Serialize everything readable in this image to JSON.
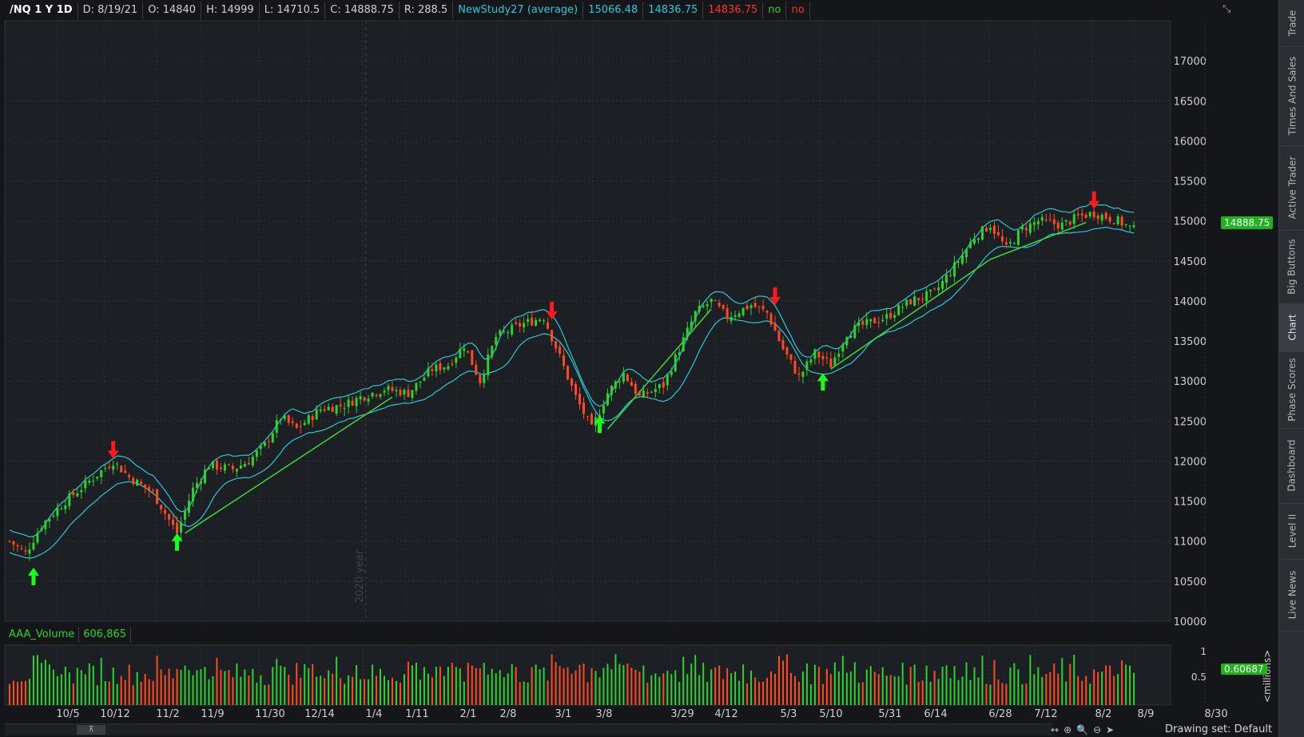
{
  "header": {
    "symbol": "/NQ 1 Y 1D",
    "date": "D: 8/19/21",
    "open": "O: 14840",
    "high": "H: 14999",
    "low": "L: 14710.5",
    "close": "C: 14888.75",
    "range": "R: 288.5",
    "study_name": "NewStudy27 (average)",
    "study_v1": "15066.48",
    "study_v2": "14836.75",
    "study_v3": "14836.75",
    "flag1": "no",
    "flag2": "no"
  },
  "price_tag": "14888.75",
  "volume_panel": {
    "label": "AAA_Volume",
    "value": "606,865",
    "tag": "0.60687",
    "unit": "<millions>",
    "ticks": [
      "1",
      "0.5"
    ]
  },
  "watermark": "2020 year",
  "drawing_set": "Drawing set: Default",
  "sidebar": {
    "tabs": [
      "Trade",
      "Times And Sales",
      "Active Trader",
      "Big Buttons",
      "Chart",
      "Phase Scores",
      "Dashboard",
      "Level II",
      "Live News"
    ],
    "active": "Chart"
  },
  "tools": [
    "↔",
    "⊕",
    "🔍",
    "⊖",
    "➤"
  ],
  "colors": {
    "bg": "#141619",
    "up": "#2fd12f",
    "down": "#ff4a1f",
    "band": "#28c8d8",
    "trendline": "#3cd93c",
    "arrow_up": "#19ff19",
    "arrow_down": "#ff1a1a"
  },
  "chart_data": {
    "type": "candlestick",
    "y_ticks": [
      17000,
      16500,
      16000,
      15500,
      15000,
      14500,
      14000,
      13500,
      13000,
      12500,
      12000,
      11500,
      11000,
      10500,
      10000
    ],
    "ylim": [
      10000,
      17500
    ],
    "x_labels": [
      "10/5",
      "10/12",
      "11/2",
      "11/9",
      "11/30",
      "12/14",
      "1/4",
      "1/11",
      "2/1",
      "2/8",
      "3/1",
      "3/8",
      "3/29",
      "4/12",
      "5/3",
      "5/10",
      "5/31",
      "6/14",
      "6/28",
      "7/12",
      "8/2",
      "8/9",
      "8/30"
    ],
    "price_path": [
      [
        0,
        11000
      ],
      [
        4,
        10850
      ],
      [
        8,
        11200
      ],
      [
        14,
        11500
      ],
      [
        20,
        11750
      ],
      [
        26,
        12000
      ],
      [
        30,
        11800
      ],
      [
        36,
        11600
      ],
      [
        42,
        11100
      ],
      [
        46,
        11650
      ],
      [
        50,
        11950
      ],
      [
        56,
        11900
      ],
      [
        60,
        12000
      ],
      [
        64,
        12200
      ],
      [
        68,
        12550
      ],
      [
        72,
        12400
      ],
      [
        78,
        12650
      ],
      [
        84,
        12700
      ],
      [
        88,
        12800
      ],
      [
        94,
        12900
      ],
      [
        100,
        12850
      ],
      [
        106,
        13150
      ],
      [
        110,
        13200
      ],
      [
        114,
        13450
      ],
      [
        118,
        13000
      ],
      [
        122,
        13550
      ],
      [
        128,
        13700
      ],
      [
        134,
        13800
      ],
      [
        138,
        13300
      ],
      [
        142,
        12800
      ],
      [
        146,
        12400
      ],
      [
        150,
        12850
      ],
      [
        154,
        13100
      ],
      [
        158,
        12800
      ],
      [
        164,
        12950
      ],
      [
        168,
        13400
      ],
      [
        172,
        13850
      ],
      [
        176,
        14000
      ],
      [
        180,
        13800
      ],
      [
        186,
        13950
      ],
      [
        190,
        13850
      ],
      [
        194,
        13400
      ],
      [
        198,
        13050
      ],
      [
        202,
        13350
      ],
      [
        206,
        13200
      ],
      [
        210,
        13600
      ],
      [
        214,
        13700
      ],
      [
        220,
        13800
      ],
      [
        226,
        14000
      ],
      [
        232,
        14100
      ],
      [
        238,
        14500
      ],
      [
        242,
        14800
      ],
      [
        246,
        14950
      ],
      [
        250,
        14650
      ],
      [
        254,
        14900
      ],
      [
        258,
        15000
      ],
      [
        264,
        14950
      ],
      [
        268,
        15050
      ],
      [
        272,
        15100
      ],
      [
        278,
        15000
      ],
      [
        282,
        14888.75
      ]
    ],
    "signals_up": [
      [
        6,
        10550
      ],
      [
        42,
        10980
      ],
      [
        148,
        12450
      ],
      [
        204,
        12980
      ]
    ],
    "signals_down": [
      [
        26,
        12150
      ],
      [
        136,
        13890
      ],
      [
        192,
        14070
      ],
      [
        272,
        15270
      ]
    ],
    "trendlines": [
      [
        [
          44,
          11100
        ],
        [
          96,
          12800
        ]
      ],
      [
        [
          150,
          12400
        ],
        [
          176,
          13900
        ]
      ],
      [
        [
          206,
          13150
        ],
        [
          246,
          14520
        ],
        [
          270,
          14980
        ]
      ]
    ],
    "volume_max": 1.0
  }
}
